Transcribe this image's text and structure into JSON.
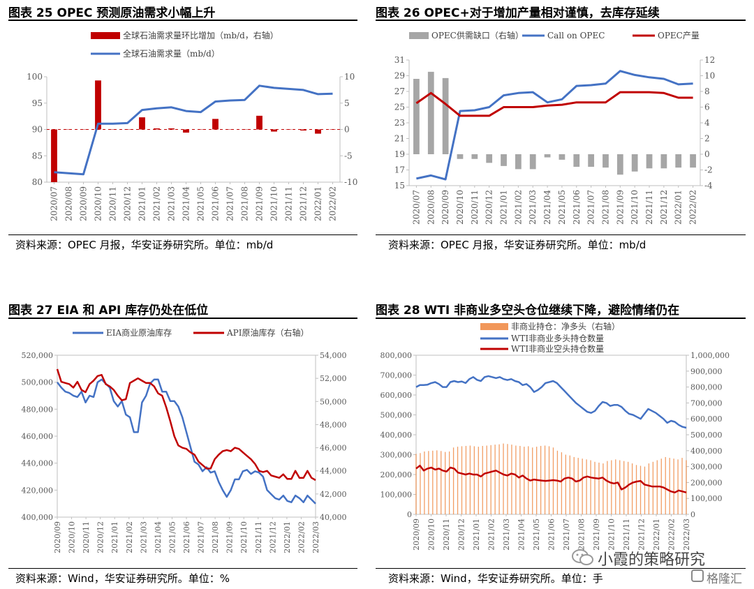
{
  "panels": [
    {
      "title": "图表 25 OPEC 预测原油需求小幅上升",
      "source": "资料来源：OPEC 月报，华安证券研究所。单位：mb/d"
    },
    {
      "title": "图表 26 OPEC+对于增加产量相对谨慎，去库存延续",
      "source": "资料来源：OPEC 月报，华安证券研究所。单位：mb/d"
    },
    {
      "title": "图表 27 EIA 和 API 库存仍处在低位",
      "source": "资料来源：Wind，华安证券研究所。单位：%"
    },
    {
      "title": "图表 28 WTI 非商业多空头仓位继续下降，避险情绪仍在",
      "source": "资料来源：Wind，华安证券研究所。单位：手"
    }
  ],
  "watermark": {
    "text": "小霞的策略研究",
    "badge": "格隆汇"
  },
  "chart_data": [
    {
      "type": "bar+line",
      "months": [
        "2020/07",
        "2020/08",
        "2020/09",
        "2020/10",
        "2020/11",
        "2020/12",
        "2021/01",
        "2021/02",
        "2021/03",
        "2021/04",
        "2021/05",
        "2021/06",
        "2021/07",
        "2021/08",
        "2021/09",
        "2021/10",
        "2021/11",
        "2021/12",
        "2022/01",
        "2022/02"
      ],
      "left_axis": {
        "min": 80,
        "max": 100,
        "ticks": [
          80,
          85,
          90,
          95,
          100
        ]
      },
      "right_axis": {
        "min": -10,
        "max": 10,
        "ticks": [
          -10,
          -5,
          0,
          5,
          10
        ]
      },
      "legend": [
        "全球石油需求量环比增加（mb/d，右轴）",
        "全球石油需求量（mb/d）"
      ],
      "series": [
        {
          "name": "全球石油需求量环比增加（mb/d，右轴）",
          "axis": "right",
          "style": "bar",
          "color": "#C00000",
          "values": [
            -10,
            0,
            0,
            9.3,
            0,
            0,
            2.3,
            0.2,
            0.2,
            -0.6,
            0,
            2,
            0,
            0,
            2.6,
            -0.4,
            0,
            -0.2,
            -0.8,
            0
          ]
        },
        {
          "name": "全球石油需求量（mb/d）",
          "axis": "left",
          "style": "line",
          "color": "#4472C4",
          "values": [
            81.9,
            81.7,
            81.5,
            91.1,
            91.1,
            91.2,
            93.7,
            94.0,
            94.2,
            93.5,
            93.3,
            95.3,
            95.5,
            95.6,
            98.3,
            97.9,
            97.7,
            97.5,
            96.7,
            96.8
          ]
        }
      ]
    },
    {
      "type": "bar+line",
      "months": [
        "2020/07",
        "2020/08",
        "2020/09",
        "2020/10",
        "2020/11",
        "2020/12",
        "2021/01",
        "2021/02",
        "2021/03",
        "2021/04",
        "2021/05",
        "2021/06",
        "2021/07",
        "2021/08",
        "2021/09",
        "2021/10",
        "2021/11",
        "2021/12",
        "2022/01",
        "2022/02"
      ],
      "left_axis": {
        "min": 15,
        "max": 31,
        "ticks": [
          15,
          17,
          19,
          21,
          23,
          25,
          27,
          29,
          31
        ]
      },
      "right_axis": {
        "min": -4,
        "max": 12,
        "ticks": [
          -4,
          -2,
          0,
          2,
          4,
          6,
          8,
          10,
          12
        ]
      },
      "legend": [
        "OPEC供需缺口（右轴）",
        "Call on OPEC",
        "OPEC产量"
      ],
      "series": [
        {
          "name": "OPEC供需缺口（右轴）",
          "axis": "right",
          "style": "bar",
          "color": "#A6A6A6",
          "values": [
            9.6,
            10.5,
            9.7,
            -0.6,
            -0.6,
            -1.1,
            -1.5,
            -1.9,
            -1.9,
            -0.4,
            -0.7,
            -1.6,
            -1.6,
            -1.7,
            -2.6,
            -2.2,
            -1.8,
            -1.8,
            -1.7,
            -1.7
          ]
        },
        {
          "name": "Call on OPEC",
          "axis": "left",
          "style": "line",
          "color": "#4472C4",
          "values": [
            15.9,
            16.3,
            15.8,
            24.5,
            24.6,
            25.0,
            26.5,
            26.8,
            26.9,
            25.6,
            26.0,
            27.7,
            27.8,
            28.0,
            29.6,
            29.1,
            28.8,
            28.6,
            27.9,
            28.0
          ]
        },
        {
          "name": "OPEC产量",
          "axis": "left",
          "style": "line",
          "color": "#C00000",
          "values": [
            25.5,
            26.8,
            25.4,
            23.9,
            23.9,
            23.9,
            25.0,
            25.0,
            25.0,
            25.2,
            25.3,
            25.6,
            25.6,
            25.6,
            26.9,
            26.9,
            26.9,
            26.8,
            26.2,
            26.2
          ]
        }
      ]
    },
    {
      "type": "line",
      "ticks": [
        "2020/09",
        "2020/10",
        "2020/11",
        "2020/12",
        "2021/01",
        "2021/02",
        "2021/03",
        "2021/04",
        "2021/05",
        "2021/06",
        "2021/07",
        "2021/08",
        "2021/09",
        "2021/10",
        "2021/11",
        "2021/12",
        "2022/01",
        "2022/02",
        "2022/03"
      ],
      "left_axis": {
        "min": 400000,
        "max": 520000,
        "ticks": [
          400000,
          420000,
          440000,
          460000,
          480000,
          500000,
          520000
        ]
      },
      "right_axis": {
        "min": 40000,
        "max": 54000,
        "ticks": [
          40000,
          42000,
          44000,
          46000,
          48000,
          50000,
          52000,
          54000
        ]
      },
      "legend": [
        "EIA商业原油库存",
        "API原油库存（右轴）"
      ],
      "series": [
        {
          "name": "EIA商业原油库存",
          "axis": "left",
          "color": "#4472C4",
          "values": [
            500000,
            496000,
            493000,
            492000,
            490000,
            489000,
            493000,
            485000,
            490000,
            489000,
            500000,
            502000,
            499000,
            496000,
            486000,
            482000,
            486000,
            476000,
            474000,
            463000,
            463000,
            485000,
            490000,
            499000,
            502000,
            502000,
            493000,
            493000,
            486000,
            486000,
            482000,
            474000,
            463000,
            452000,
            441000,
            439000,
            434000,
            437000,
            433000,
            434000,
            426000,
            420000,
            415000,
            420000,
            428000,
            428000,
            434000,
            435000,
            432000,
            434000,
            433000,
            430000,
            420000,
            417000,
            414000,
            413000,
            416000,
            412000,
            411000,
            416000,
            414000,
            411000,
            416000,
            413000,
            410000
          ]
        },
        {
          "name": "API原油库存（右轴）",
          "axis": "right",
          "color": "#C00000",
          "values": [
            52800,
            51700,
            51600,
            51500,
            51200,
            51700,
            51000,
            50800,
            51500,
            51800,
            52200,
            52300,
            51500,
            51300,
            51000,
            50500,
            50100,
            50200,
            51600,
            51800,
            52000,
            51800,
            51600,
            51600,
            51300,
            50700,
            50500,
            49500,
            48300,
            47000,
            46200,
            46000,
            45900,
            45600,
            45400,
            44800,
            44500,
            44200,
            44200,
            45000,
            45400,
            45700,
            45800,
            45700,
            46000,
            45900,
            45600,
            45300,
            45000,
            44600,
            44000,
            43900,
            44000,
            43600,
            43500,
            43400,
            43700,
            43300,
            43300,
            44000,
            43400,
            43400,
            44000,
            43400,
            43200
          ]
        }
      ]
    },
    {
      "type": "bar+line",
      "ticks": [
        "2020/09",
        "2020/10",
        "2020/11",
        "2020/12",
        "2021/01",
        "2021/02",
        "2021/03",
        "2021/04",
        "2021/05",
        "2021/06",
        "2021/07",
        "2021/08",
        "2021/09",
        "2021/10",
        "2021/11",
        "2021/12",
        "2022/01",
        "2022/02",
        "2022/03"
      ],
      "left_axis": {
        "min": 0,
        "max": 800000,
        "ticks": [
          0,
          100000,
          200000,
          300000,
          400000,
          500000,
          600000,
          700000,
          800000
        ]
      },
      "right_axis": {
        "min": 0,
        "max": 1000000,
        "ticks": [
          0,
          100000,
          200000,
          300000,
          400000,
          500000,
          600000,
          700000,
          800000,
          900000,
          1000000
        ]
      },
      "legend": [
        "非商业持仓：净多头（右轴）",
        "WTI非商业多头持仓数量",
        "WTI非商业空头持仓数量"
      ],
      "series": [
        {
          "name": "非商业持仓：净多头（右轴）",
          "axis": "right",
          "style": "bar",
          "color": "#ED7D31",
          "values": [
            380000,
            385000,
            395000,
            398000,
            400000,
            402000,
            398000,
            392000,
            395000,
            420000,
            425000,
            428000,
            430000,
            432000,
            428000,
            425000,
            430000,
            432000,
            435000,
            438000,
            440000,
            445000,
            442000,
            438000,
            432000,
            430000,
            425000,
            428000,
            420000,
            425000,
            430000,
            432000,
            428000,
            420000,
            400000,
            390000,
            375000,
            370000,
            360000,
            355000,
            350000,
            345000,
            340000,
            330000,
            325000,
            320000,
            335000,
            340000,
            345000,
            340000,
            335000,
            330000,
            320000,
            310000,
            305000,
            300000,
            320000,
            330000,
            340000,
            350000,
            360000,
            355000,
            350000,
            345000,
            355000,
            340000
          ]
        },
        {
          "name": "WTI非商业多头持仓数量",
          "axis": "left",
          "style": "line",
          "color": "#4472C4",
          "values": [
            640000,
            650000,
            650000,
            652000,
            660000,
            665000,
            655000,
            640000,
            640000,
            665000,
            670000,
            665000,
            668000,
            660000,
            680000,
            690000,
            676000,
            670000,
            690000,
            695000,
            690000,
            685000,
            690000,
            680000,
            675000,
            680000,
            670000,
            665000,
            650000,
            655000,
            640000,
            615000,
            625000,
            640000,
            660000,
            665000,
            670000,
            660000,
            640000,
            620000,
            600000,
            580000,
            560000,
            545000,
            530000,
            515000,
            510000,
            520000,
            545000,
            565000,
            560000,
            545000,
            550000,
            550000,
            540000,
            520000,
            505000,
            500000,
            490000,
            480000,
            505000,
            530000,
            520000,
            510000,
            495000,
            480000,
            460000,
            470000,
            465000,
            450000,
            440000,
            435000
          ]
        },
        {
          "name": "WTI非商业空头持仓数量",
          "axis": "left",
          "style": "line",
          "color": "#C00000",
          "values": [
            230000,
            245000,
            220000,
            230000,
            235000,
            225000,
            230000,
            220000,
            215000,
            235000,
            230000,
            210000,
            205000,
            200000,
            205000,
            200000,
            200000,
            190000,
            205000,
            210000,
            215000,
            220000,
            210000,
            200000,
            195000,
            205000,
            200000,
            185000,
            195000,
            180000,
            170000,
            175000,
            172000,
            170000,
            168000,
            170000,
            172000,
            170000,
            165000,
            180000,
            185000,
            180000,
            165000,
            170000,
            185000,
            190000,
            185000,
            182000,
            180000,
            185000,
            170000,
            160000,
            155000,
            160000,
            125000,
            135000,
            150000,
            160000,
            165000,
            168000,
            150000,
            145000,
            140000,
            140000,
            140000,
            135000,
            125000,
            115000,
            110000,
            120000,
            115000,
            110000
          ]
        }
      ]
    }
  ]
}
